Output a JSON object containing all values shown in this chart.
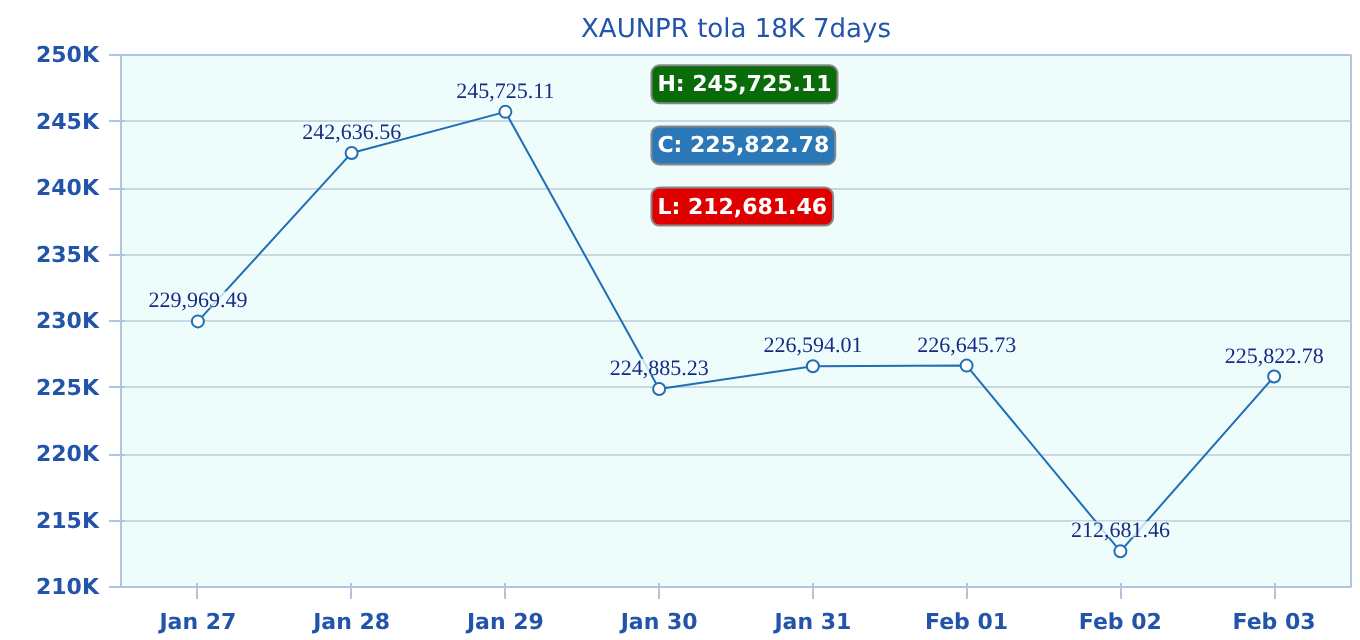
{
  "chart_data": {
    "type": "line",
    "title": "XAUNPR tola 18K 7days",
    "categories": [
      "Jan 27",
      "Jan 28",
      "Jan 29",
      "Jan 30",
      "Jan 31",
      "Feb 01",
      "Feb 02",
      "Feb 03"
    ],
    "values": [
      229969.49,
      242636.56,
      245725.11,
      224885.23,
      226594.01,
      226645.73,
      212681.46,
      225822.78
    ],
    "value_labels": [
      "229,969.49",
      "242,636.56",
      "245,725.11",
      "224,885.23",
      "226,594.01",
      "226,645.73",
      "212,681.46",
      "225,822.78"
    ],
    "color": "#1f6fb5",
    "marker": "circle",
    "grid": "y",
    "ylim": [
      210000,
      250000
    ],
    "yticks": [
      {
        "value": 210000,
        "label": "210K"
      },
      {
        "value": 215000,
        "label": "215K"
      },
      {
        "value": 220000,
        "label": "220K"
      },
      {
        "value": 225000,
        "label": "225K"
      },
      {
        "value": 230000,
        "label": "230K"
      },
      {
        "value": 235000,
        "label": "235K"
      },
      {
        "value": 240000,
        "label": "240K"
      },
      {
        "value": 245000,
        "label": "245K"
      },
      {
        "value": 250000,
        "label": "250K"
      }
    ],
    "annotations": [
      "H: 245,725.11",
      "C: 225,822.78",
      "L: 212,681.46"
    ]
  }
}
